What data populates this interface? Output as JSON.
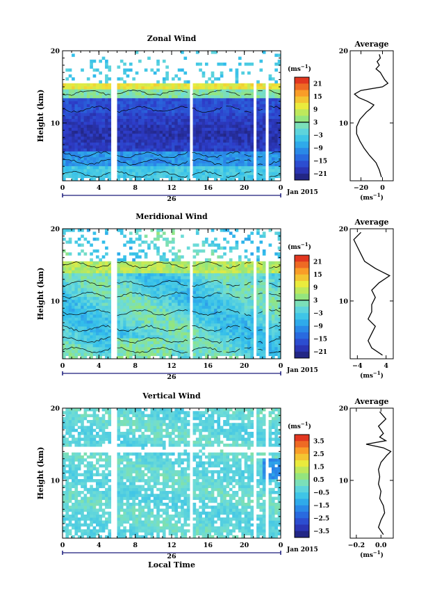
{
  "chart_data": [
    {
      "type": "heatmap",
      "title": "Zonal Wind",
      "ylabel": "Height (km)",
      "xlabel": "",
      "x_ticks": [
        "0",
        "4",
        "8",
        "12",
        "16",
        "20",
        "0"
      ],
      "y_ticks": [
        "10",
        "20"
      ],
      "date_mid": "26",
      "date_right": "Jan 2015",
      "ylim": [
        2,
        20
      ],
      "colorbar": {
        "unit_base": "(ms",
        "unit_exp": "−1",
        "unit_close": ")",
        "ticks": [
          "21",
          "15",
          "9",
          "3",
          "−3",
          "−9",
          "−15",
          "−21"
        ],
        "range": [
          -24,
          24
        ]
      },
      "profile": {
        "title": "Average",
        "x_ticks": [
          "−20",
          "0"
        ],
        "y_ticks": [
          "10",
          "20"
        ],
        "unit_base": "(ms",
        "unit_exp": "−1",
        "unit_close": ")",
        "xlim": [
          -30,
          10
        ],
        "heights": [
          2.5,
          3.5,
          4.5,
          5.5,
          6.5,
          7.5,
          8.5,
          9.5,
          10.5,
          11.5,
          12.0,
          12.5,
          13.0,
          13.5,
          14.0,
          14.5,
          15.0,
          15.5,
          16.0,
          16.5,
          17.0,
          17.5,
          18.0,
          18.5,
          19.0,
          19.5
        ],
        "values": [
          -1,
          -3,
          -6,
          -12,
          -17,
          -21,
          -24,
          -24,
          -21,
          -15,
          -11,
          -8,
          -14,
          -22,
          -26,
          -20,
          0,
          5,
          2,
          0,
          -2,
          -6,
          -3,
          -5,
          -2,
          -3
        ]
      }
    },
    {
      "type": "heatmap",
      "title": "Meridional Wind",
      "ylabel": "Height (km)",
      "xlabel": "",
      "x_ticks": [
        "0",
        "4",
        "8",
        "12",
        "16",
        "20",
        "0"
      ],
      "y_ticks": [
        "10",
        "20"
      ],
      "date_mid": "26",
      "date_right": "Jan 2015",
      "ylim": [
        2,
        20
      ],
      "colorbar": {
        "unit_base": "(ms",
        "unit_exp": "−1",
        "unit_close": ")",
        "ticks": [
          "21",
          "15",
          "9",
          "3",
          "−3",
          "−9",
          "−15",
          "−21"
        ],
        "range": [
          -24,
          24
        ]
      },
      "profile": {
        "title": "Average",
        "x_ticks": [
          "−4",
          "4"
        ],
        "y_ticks": [
          "10",
          "20"
        ],
        "unit_base": "(ms",
        "unit_exp": "−1",
        "unit_close": ")",
        "xlim": [
          -6,
          6
        ],
        "heights": [
          2.5,
          3.5,
          4.5,
          5.5,
          6.5,
          7.5,
          8.5,
          9.5,
          10.5,
          11.5,
          12.5,
          13.5,
          14.0,
          14.5,
          15.5,
          16.5,
          17.5,
          18.5,
          19.5
        ],
        "values": [
          3,
          0,
          -1,
          0,
          1,
          -1,
          0,
          0,
          1,
          0,
          2,
          5,
          3,
          1,
          -2,
          -3,
          -4,
          -5,
          -3
        ]
      }
    },
    {
      "type": "heatmap",
      "title": "Vertical Wind",
      "ylabel": "Height (km)",
      "xlabel": "Local Time",
      "x_ticks": [
        "0",
        "4",
        "8",
        "12",
        "16",
        "20",
        "0"
      ],
      "y_ticks": [
        "10",
        "20"
      ],
      "date_mid": "26",
      "date_right": "Jan 2015",
      "ylim": [
        2,
        20
      ],
      "colorbar": {
        "unit_base": "(ms",
        "unit_exp": "−1",
        "unit_close": ")",
        "ticks": [
          "3.5",
          "2.5",
          "1.5",
          "0.5",
          "−0.5",
          "−1.5",
          "−2.5",
          "−3.5"
        ],
        "range": [
          -4,
          4
        ]
      },
      "profile": {
        "title": "Average",
        "x_ticks": [
          "−0.2",
          "0.0"
        ],
        "y_ticks": [
          "10",
          "20"
        ],
        "unit_base": "(ms",
        "unit_exp": "−1",
        "unit_close": ")",
        "xlim": [
          -0.25,
          0.1
        ],
        "heights": [
          2.5,
          3.5,
          4.5,
          5.5,
          6.5,
          7.5,
          8.5,
          9.5,
          10.5,
          11.5,
          12.5,
          13.5,
          14.0,
          14.5,
          15.0,
          15.5,
          16.0,
          16.5,
          17.5,
          18.5,
          19.5
        ],
        "values": [
          0.02,
          -0.02,
          0.0,
          0.03,
          0.02,
          -0.01,
          0.0,
          -0.02,
          -0.01,
          -0.02,
          0.0,
          0.05,
          0.08,
          0.02,
          -0.12,
          0.04,
          -0.01,
          0.02,
          -0.02,
          0.04,
          -0.01
        ]
      }
    }
  ]
}
